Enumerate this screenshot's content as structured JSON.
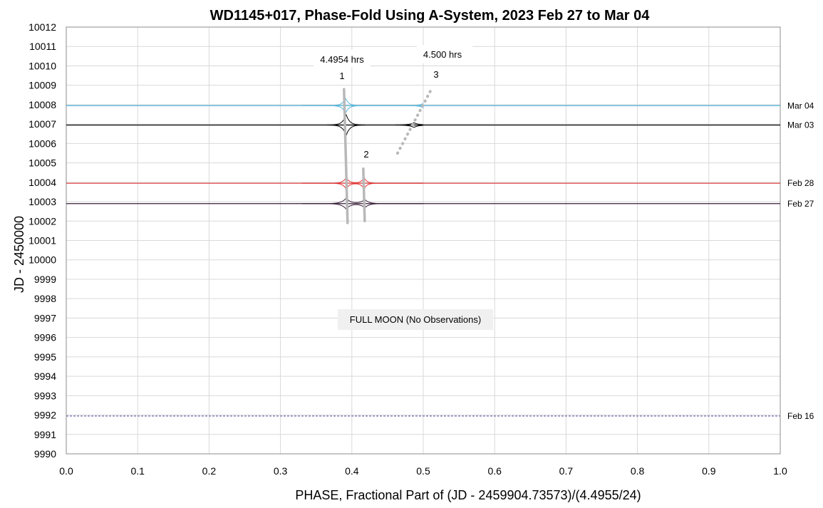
{
  "chart_data": {
    "type": "line",
    "title": "WD1145+017, Phase-Fold Using A-System, 2023 Feb 27 to Mar 04",
    "xlabel": "PHASE, Fractional Part of (JD - 2459904.73573)/(4.4955/24)",
    "ylabel": "JD - 2450000",
    "xlim": [
      0.0,
      1.0
    ],
    "ylim": [
      9990,
      10012
    ],
    "x_ticks": [
      "0.0",
      "0.1",
      "0.2",
      "0.3",
      "0.4",
      "0.5",
      "0.6",
      "0.7",
      "0.8",
      "0.9",
      "1.0"
    ],
    "y_ticks": [
      "9990",
      "9991",
      "9992",
      "9993",
      "9994",
      "9995",
      "9996",
      "9997",
      "9998",
      "9999",
      "10000",
      "10001",
      "10002",
      "10003",
      "10004",
      "10005",
      "10006",
      "10007",
      "10008",
      "10009",
      "10010",
      "10011",
      "10012"
    ],
    "grid": true,
    "series": [
      {
        "name": "Mar 04",
        "baseline": 10007.95,
        "color": "#4fb3d9",
        "dips": [
          {
            "phase": 0.391,
            "depth": 0.4,
            "width": 0.02
          },
          {
            "phase": 0.5,
            "depth": 0.12,
            "width": 0.02
          }
        ]
      },
      {
        "name": "Mar 03",
        "baseline": 10006.95,
        "color": "#000000",
        "dips": [
          {
            "phase": 0.392,
            "depth": 0.55,
            "width": 0.022
          },
          {
            "phase": 0.487,
            "depth": 0.12,
            "width": 0.03
          }
        ]
      },
      {
        "name": "Feb 28",
        "baseline": 10003.95,
        "color": "#e03030",
        "dips": [
          {
            "phase": 0.392,
            "depth": 0.3,
            "width": 0.02
          },
          {
            "phase": 0.417,
            "depth": 0.3,
            "width": 0.018
          }
        ]
      },
      {
        "name": "Feb 27",
        "baseline": 10002.9,
        "color": "#3a1f3a",
        "dips": [
          {
            "phase": 0.392,
            "depth": 0.28,
            "width": 0.028
          },
          {
            "phase": 0.418,
            "depth": 0.22,
            "width": 0.025
          }
        ]
      },
      {
        "name": "Feb 16",
        "baseline": 9991.95,
        "color": "#8c7fb8",
        "dips": []
      }
    ],
    "trend_lines": [
      {
        "label": "1",
        "style": "solid",
        "x": [
          0.389,
          0.394
        ],
        "y": [
          10008.8,
          10001.9
        ]
      },
      {
        "label": "2",
        "style": "solid",
        "x": [
          0.416,
          0.418
        ],
        "y": [
          10004.7,
          10002.0
        ]
      },
      {
        "label": "3",
        "style": "dotted",
        "x": [
          0.464,
          0.51
        ],
        "y": [
          10005.5,
          10008.7
        ]
      }
    ],
    "annotations": {
      "period1": "4.4954 hrs",
      "period3": "4.500 hrs",
      "note": "FULL MOON (No Observations)"
    }
  }
}
